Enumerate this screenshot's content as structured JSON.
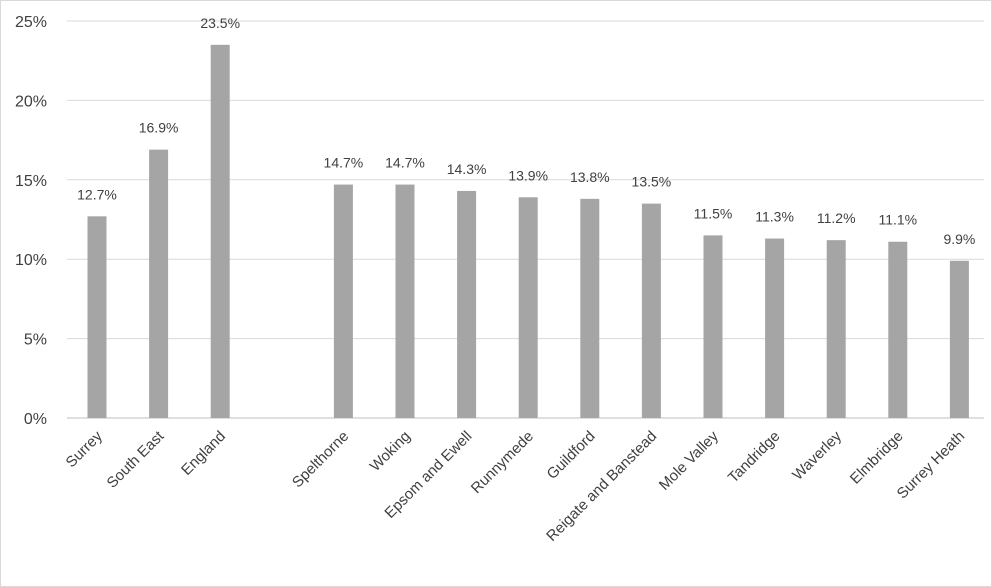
{
  "chart_data": {
    "type": "bar",
    "title": "",
    "xlabel": "",
    "ylabel": "",
    "ylim": [
      0,
      25
    ],
    "yticks": [
      0,
      5,
      10,
      15,
      20,
      25
    ],
    "ytick_labels": [
      "0%",
      "5%",
      "10%",
      "15%",
      "20%",
      "25%"
    ],
    "grid": true,
    "legend": "none",
    "bar_color": "#a5a5a5",
    "categories": [
      "Surrey",
      "South East",
      "England",
      "",
      "Spelthorne",
      "Woking",
      "Epsom and Ewell",
      "Runnymede",
      "Guildford",
      "Reigate and Banstead",
      "Mole Valley",
      "Tandridge",
      "Waverley",
      "Elmbridge",
      "Surrey Heath"
    ],
    "values": [
      12.7,
      16.9,
      23.5,
      null,
      14.7,
      14.7,
      14.3,
      13.9,
      13.8,
      13.5,
      11.5,
      11.3,
      11.2,
      11.1,
      9.9
    ],
    "data_labels": [
      "12.7%",
      "16.9%",
      "23.5%",
      "",
      "14.7%",
      "14.7%",
      "14.3%",
      "13.9%",
      "13.8%",
      "13.5%",
      "11.5%",
      "11.3%",
      "11.2%",
      "11.1%",
      "9.9%"
    ]
  }
}
